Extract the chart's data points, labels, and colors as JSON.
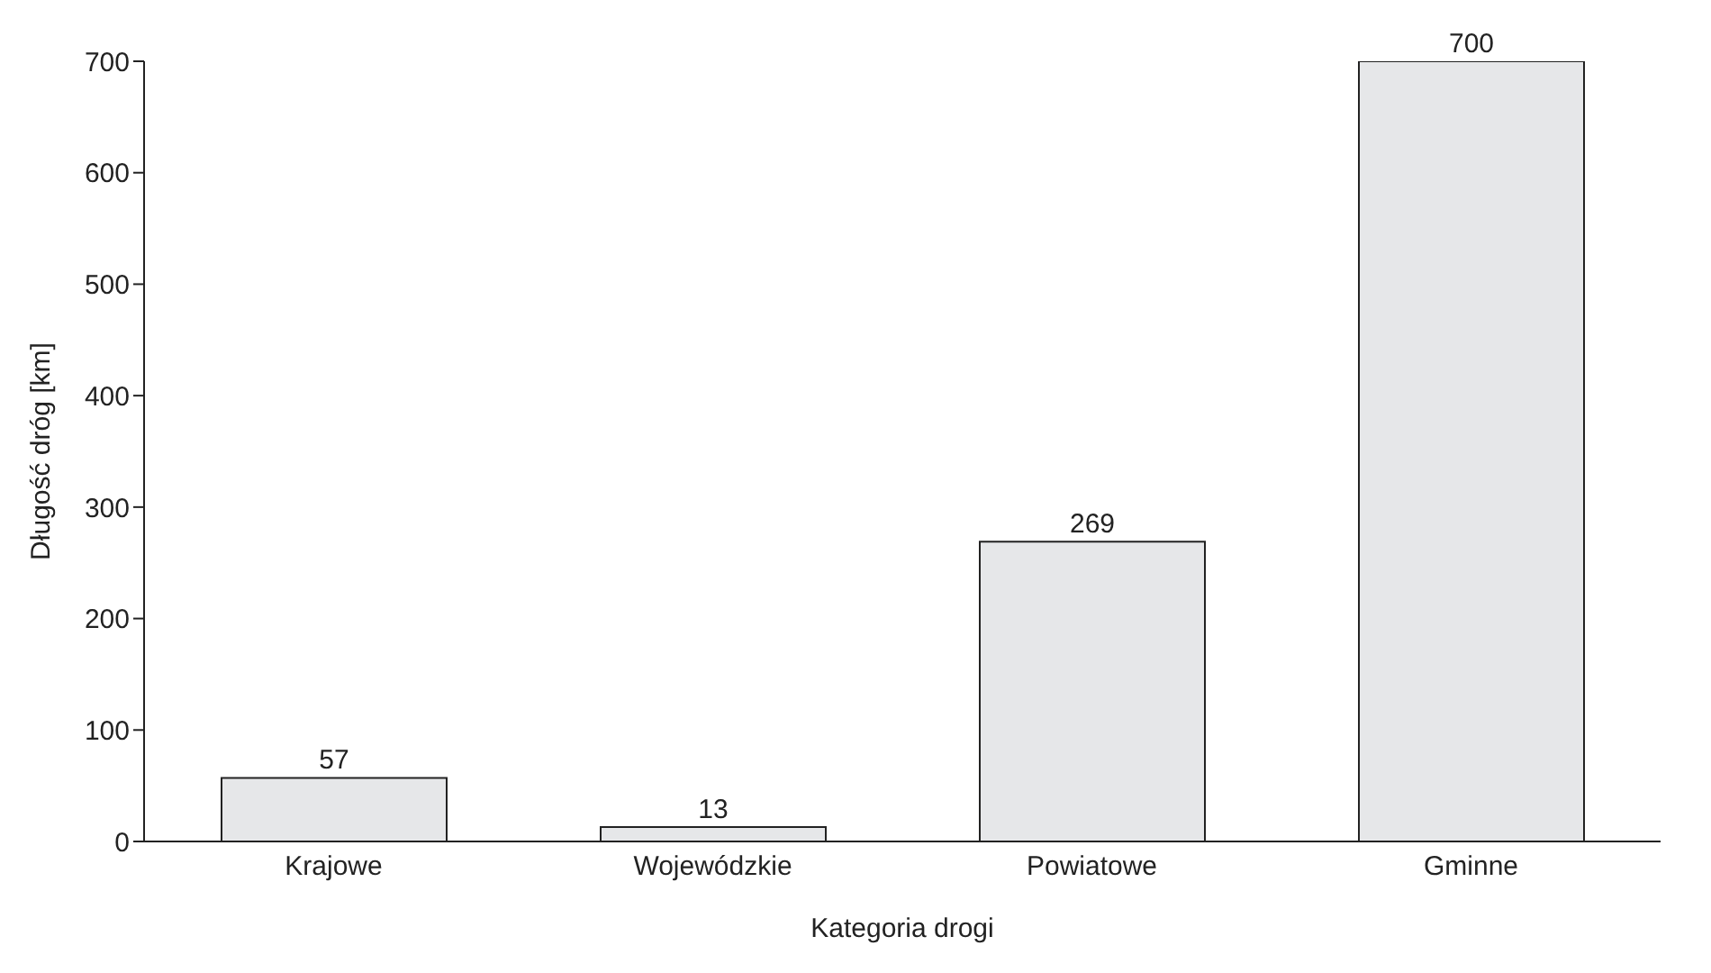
{
  "chart_data": {
    "type": "bar",
    "xlabel": "Kategoria drogi",
    "ylabel": "Długość dróg [km]",
    "categories": [
      "Krajowe",
      "Wojewódzkie",
      "Powiatowe",
      "Gminne"
    ],
    "values": [
      57,
      13,
      269,
      700
    ],
    "color": "#e6e7e9",
    "ylim": [
      0,
      700
    ],
    "yticks": [
      0,
      100,
      200,
      300,
      400,
      500,
      600,
      700
    ],
    "grid": false,
    "data_labels": true
  }
}
